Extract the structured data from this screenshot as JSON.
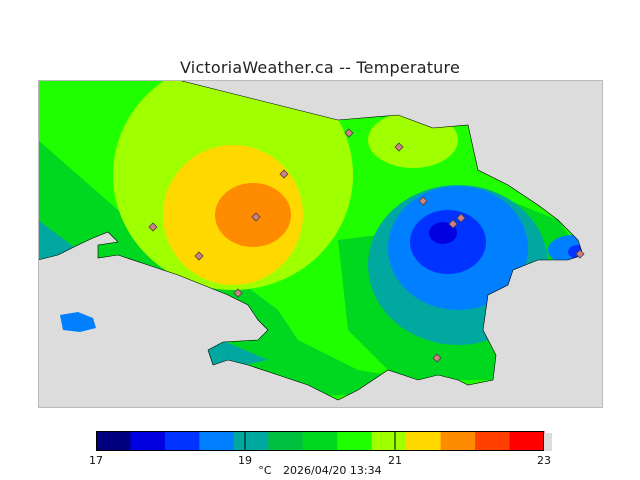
{
  "title": "VictoriaWeather.ca -- Temperature",
  "footer": {
    "unit": "°C",
    "timestamp": "2026/04/20 13:34"
  },
  "legend": {
    "colors": [
      "#00007f",
      "#0000e0",
      "#0033ff",
      "#0080ff",
      "#00a8a0",
      "#00c040",
      "#00d820",
      "#20ff00",
      "#a0ff00",
      "#ffd800",
      "#ff8c00",
      "#ff4000",
      "#ff0000"
    ],
    "tick_labels": [
      "17",
      "19",
      "21",
      "23"
    ]
  },
  "map": {
    "background": "#dcdcdc",
    "station_count": 12
  }
}
